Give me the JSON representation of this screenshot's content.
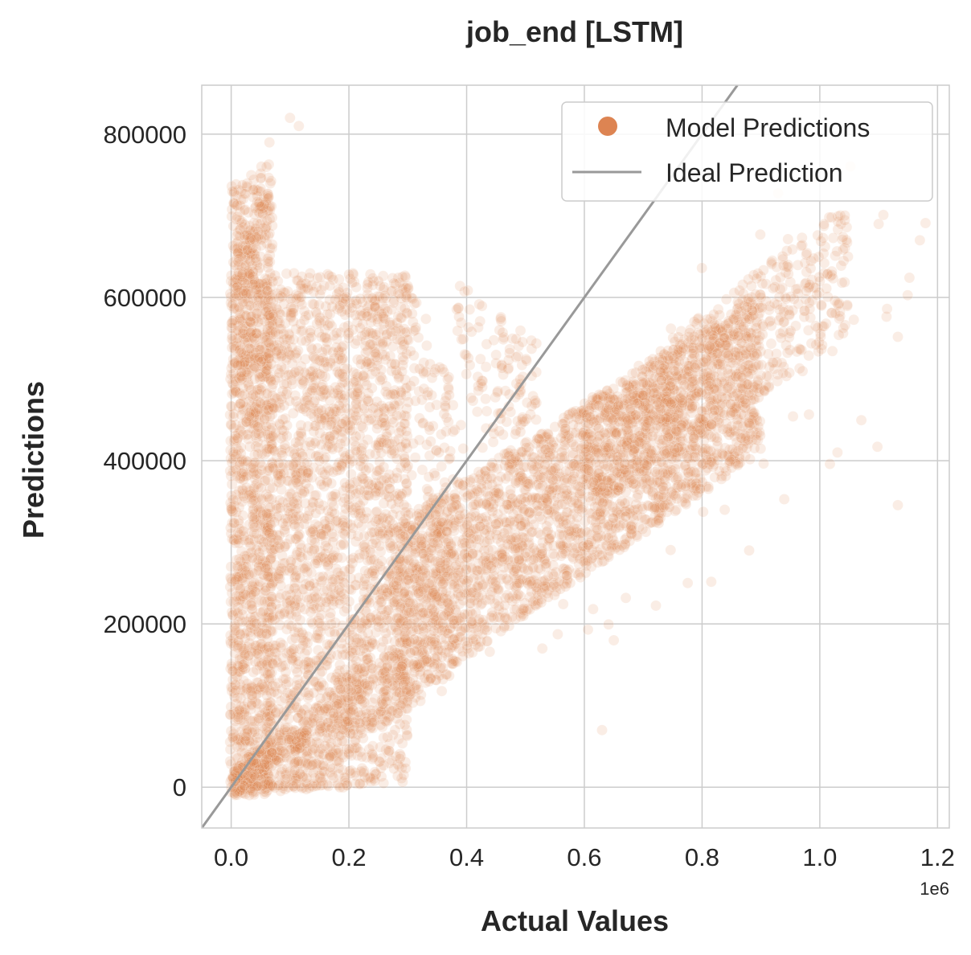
{
  "chart_data": {
    "type": "scatter",
    "title": "job_end [LSTM]",
    "xlabel": "Actual Values",
    "ylabel": "Predictions",
    "x_offset_label": "1e6",
    "xlim": [
      -50000,
      1220000
    ],
    "ylim": [
      -50000,
      860000
    ],
    "x_ticks": [
      0,
      200000,
      400000,
      600000,
      800000,
      1000000,
      1200000
    ],
    "x_tick_labels": [
      "0.0",
      "0.2",
      "0.4",
      "0.6",
      "0.8",
      "1.0",
      "1.2"
    ],
    "y_ticks": [
      0,
      200000,
      400000,
      600000,
      800000
    ],
    "y_tick_labels": [
      "0",
      "200000",
      "400000",
      "600000",
      "800000"
    ],
    "grid": true,
    "legend_position": "top-right",
    "series": [
      {
        "name": "Model Predictions",
        "kind": "scatter",
        "color": "#dd8452",
        "alpha": 0.15,
        "points": [
          [
            0,
            0
          ],
          [
            10000,
            50000
          ],
          [
            20000,
            150000
          ],
          [
            30000,
            300000
          ],
          [
            40000,
            500000
          ],
          [
            50000,
            650000
          ],
          [
            60000,
            760000
          ],
          [
            65000,
            790000
          ],
          [
            100000,
            820000
          ],
          [
            115000,
            810000
          ],
          [
            100000,
            100000
          ],
          [
            150000,
            400000
          ],
          [
            200000,
            550000
          ],
          [
            250000,
            620000
          ],
          [
            300000,
            200000
          ],
          [
            400000,
            250000
          ],
          [
            500000,
            350000
          ],
          [
            600000,
            420000
          ],
          [
            700000,
            480000
          ],
          [
            800000,
            550000
          ],
          [
            900000,
            600000
          ],
          [
            1000000,
            620000
          ],
          [
            1100000,
            690000
          ],
          [
            1170000,
            670000
          ],
          [
            650000,
            180000
          ],
          [
            880000,
            290000
          ],
          [
            1030000,
            410000
          ],
          [
            630000,
            70000
          ]
        ]
      },
      {
        "name": "Ideal Prediction",
        "kind": "line",
        "color": "#999999",
        "points": [
          [
            -50000,
            -50000
          ],
          [
            860000,
            860000
          ]
        ]
      }
    ]
  }
}
